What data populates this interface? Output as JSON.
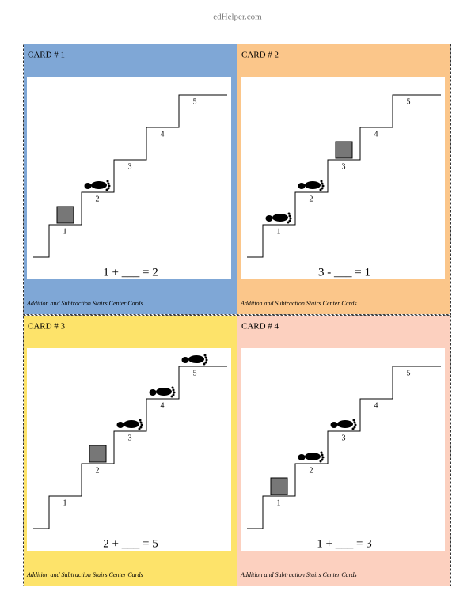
{
  "header": {
    "title": "edHelper.com"
  },
  "cards": [
    {
      "title": "CARD # 1",
      "steps": [
        "1",
        "2",
        "3",
        "4",
        "5"
      ],
      "equation": "1 + ___ = 2",
      "footer": "Addition and Subtraction Stairs Center Cards"
    },
    {
      "title": "CARD # 2",
      "steps": [
        "1",
        "2",
        "3",
        "4",
        "5"
      ],
      "equation": "3 - ___ = 1",
      "footer": "Addition and Subtraction Stairs Center Cards"
    },
    {
      "title": "CARD # 3",
      "steps": [
        "1",
        "2",
        "3",
        "4",
        "5"
      ],
      "equation": "2 + ___ = 5",
      "footer": "Addition and Subtraction Stairs Center Cards"
    },
    {
      "title": "CARD # 4",
      "steps": [
        "1",
        "2",
        "3",
        "4",
        "5"
      ],
      "equation": "1 + ___ = 3",
      "footer": "Addition and Subtraction Stairs Center Cards"
    }
  ]
}
